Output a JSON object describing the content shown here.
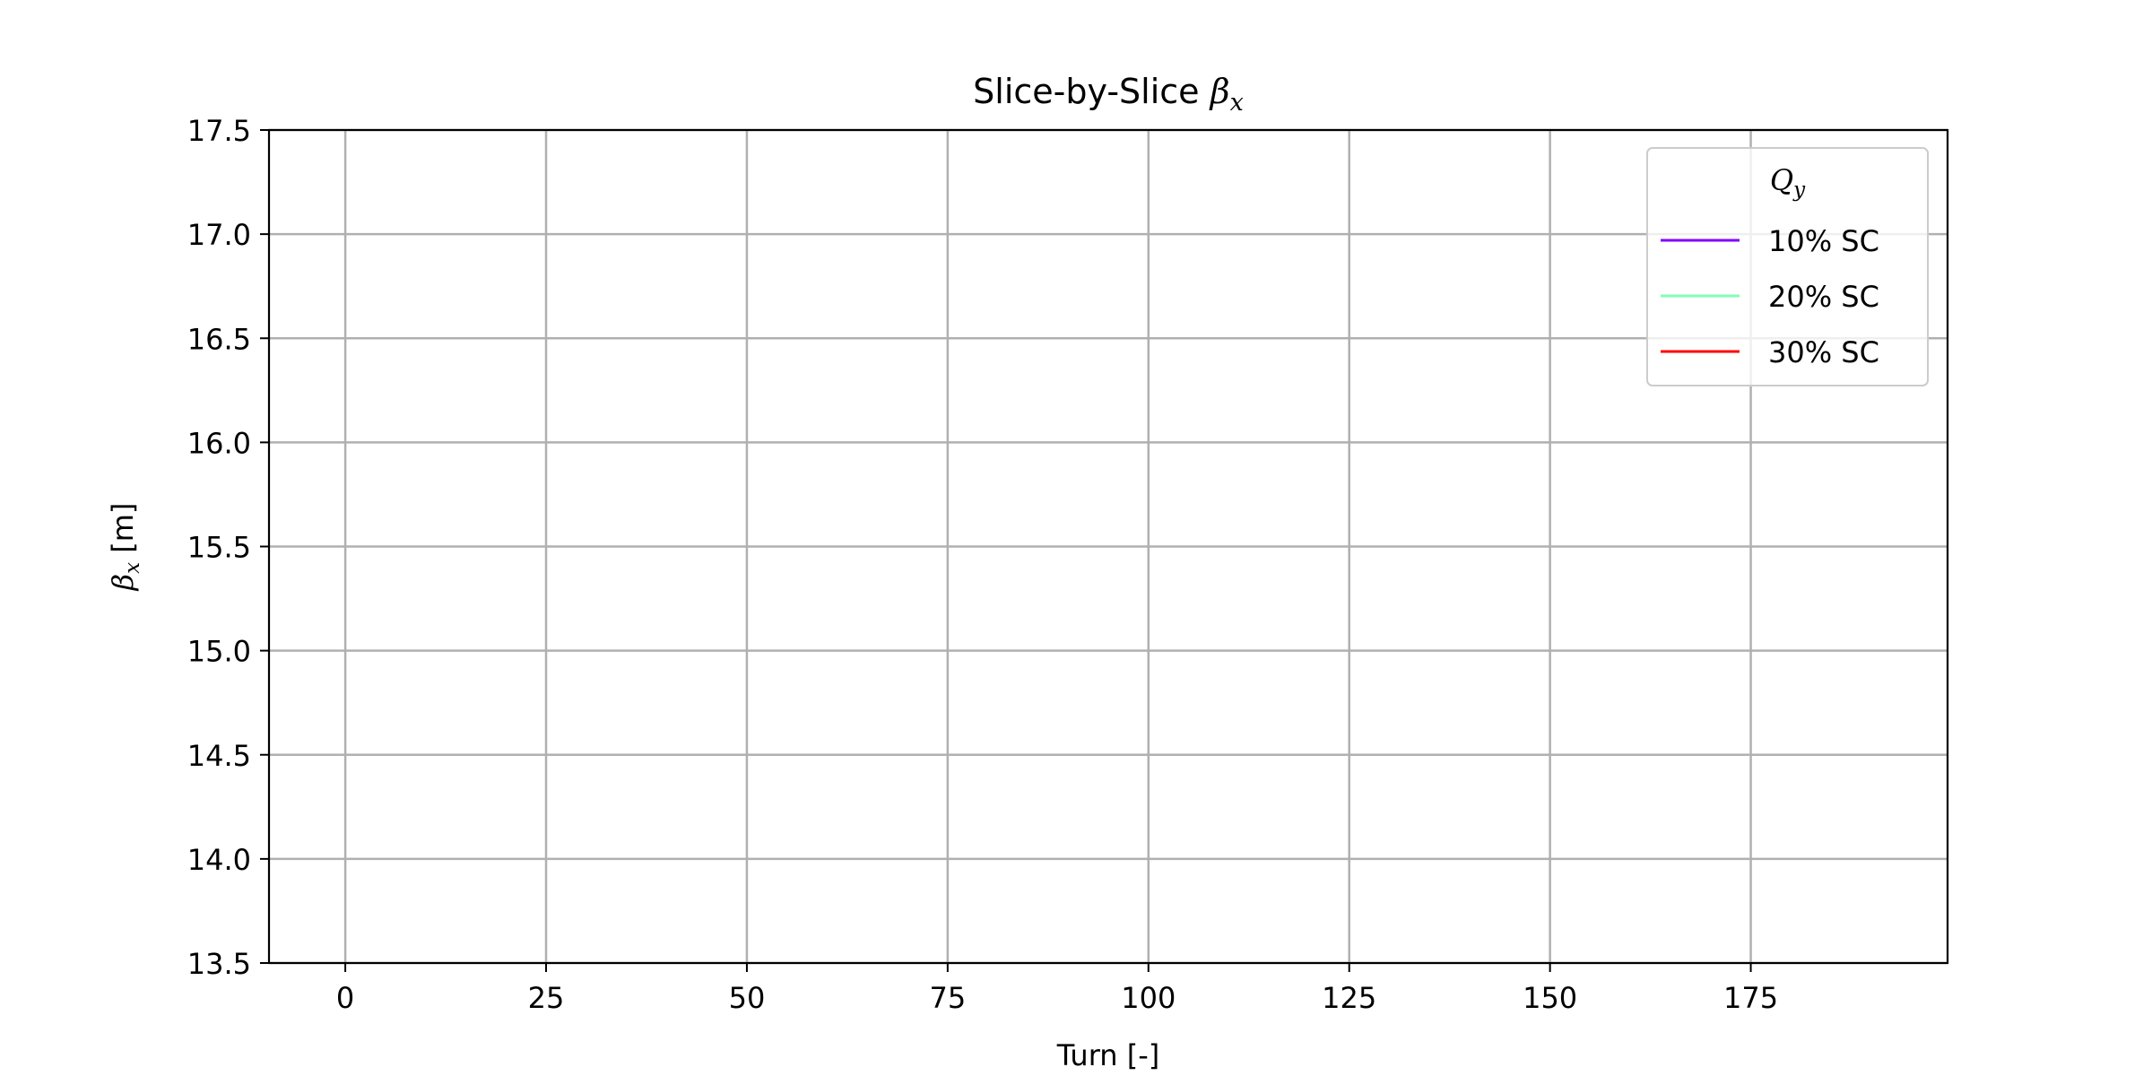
{
  "chart_data": {
    "type": "line",
    "title": "Slice-by-Slice",
    "title_symbol": "β",
    "title_subscript": "x",
    "xlabel": "Turn [-]",
    "ylabel_symbol": "β",
    "ylabel_subscript": "x",
    "ylabel_unit": "[m]",
    "xlim": [
      -9.5,
      199.5
    ],
    "ylim": [
      13.5,
      17.5
    ],
    "xticks": [
      0,
      25,
      50,
      75,
      100,
      125,
      150,
      175
    ],
    "yticks": [
      13.5,
      14.0,
      14.5,
      15.0,
      15.5,
      16.0,
      16.5,
      17.0,
      17.5
    ],
    "grid": true,
    "legend": {
      "placement": "top-right",
      "title_symbol": "Q",
      "title_subscript": "y"
    },
    "series": [
      {
        "name": "10% SC",
        "color": "#8000ff",
        "x": [],
        "y": []
      },
      {
        "name": "20% SC",
        "color": "#80ffb4",
        "x": [],
        "y": []
      },
      {
        "name": "30% SC",
        "color": "#ff0000",
        "x": [],
        "y": []
      }
    ]
  }
}
